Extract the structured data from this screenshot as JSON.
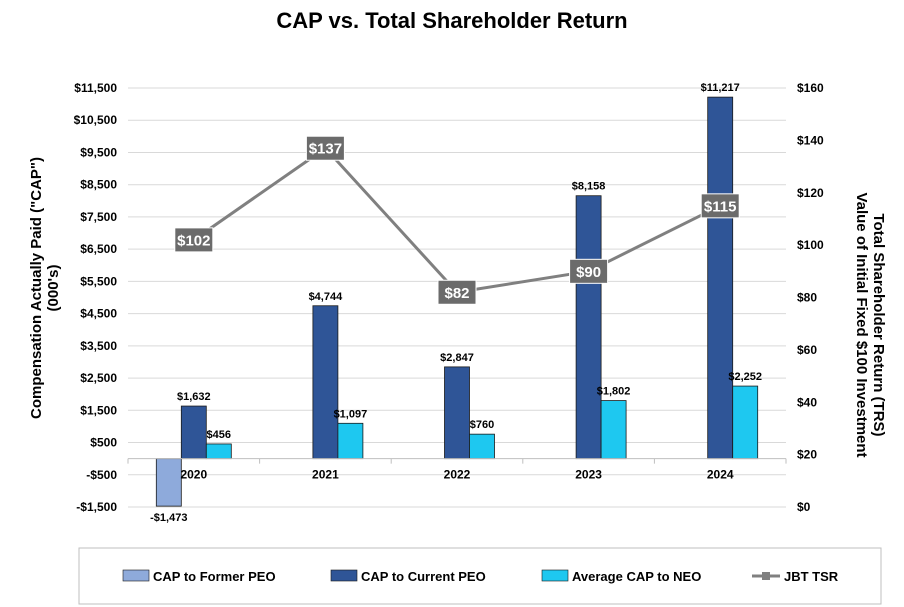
{
  "chart_data": {
    "type": "bar",
    "title": "CAP vs. Total Shareholder Return",
    "categories": [
      "2020",
      "2021",
      "2022",
      "2023",
      "2024"
    ],
    "ylabel_left": "Compensation Actually Paid (\"CAP\")",
    "ylabel_left_line2": "(000's)",
    "ylabel_right": "Total Shareholder Return (TRS)",
    "ylabel_right_line2": "Value of Initial Fixed $100 Investment",
    "ylim_left": [
      -1500,
      11500
    ],
    "yticks_left": [
      -1500,
      -500,
      500,
      1500,
      2500,
      3500,
      4500,
      5500,
      6500,
      7500,
      8500,
      9500,
      10500,
      11500
    ],
    "yticks_left_labels": [
      "-$1,500",
      "-$500",
      "$500",
      "$1,500",
      "$2,500",
      "$3,500",
      "$4,500",
      "$5,500",
      "$6,500",
      "$7,500",
      "$8,500",
      "$9,500",
      "$10,500",
      "$11,500"
    ],
    "ylim_right": [
      0,
      160
    ],
    "yticks_right": [
      0,
      20,
      40,
      60,
      80,
      100,
      120,
      140,
      160
    ],
    "yticks_right_labels": [
      "$0",
      "$20",
      "$40",
      "$60",
      "$80",
      "$100",
      "$120",
      "$140",
      "$160"
    ],
    "series": [
      {
        "name": "CAP to Former PEO",
        "type": "bar",
        "color": "#8eaadb",
        "values": [
          -1473,
          null,
          null,
          null,
          null
        ],
        "labels": [
          "-$1,473",
          null,
          null,
          null,
          null
        ]
      },
      {
        "name": "CAP to Current PEO",
        "type": "bar",
        "color": "#2f5597",
        "values": [
          1632,
          4744,
          2847,
          8158,
          11217
        ],
        "labels": [
          "$1,632",
          "$4,744",
          "$2,847",
          "$8,158",
          "$11,217"
        ]
      },
      {
        "name": "Average CAP to NEO",
        "type": "bar",
        "color": "#1ec8f0",
        "values": [
          456,
          1097,
          760,
          1802,
          2252
        ],
        "labels": [
          "$456",
          "$1,097",
          "$760",
          "$1,802",
          "$2,252"
        ]
      },
      {
        "name": "JBT TSR",
        "type": "line",
        "axis": "right",
        "color": "#808080",
        "values": [
          102,
          137,
          82,
          90,
          115
        ],
        "labels": [
          "$102",
          "$137",
          "$82",
          "$90",
          "$115"
        ]
      }
    ],
    "legend_position": "bottom"
  }
}
